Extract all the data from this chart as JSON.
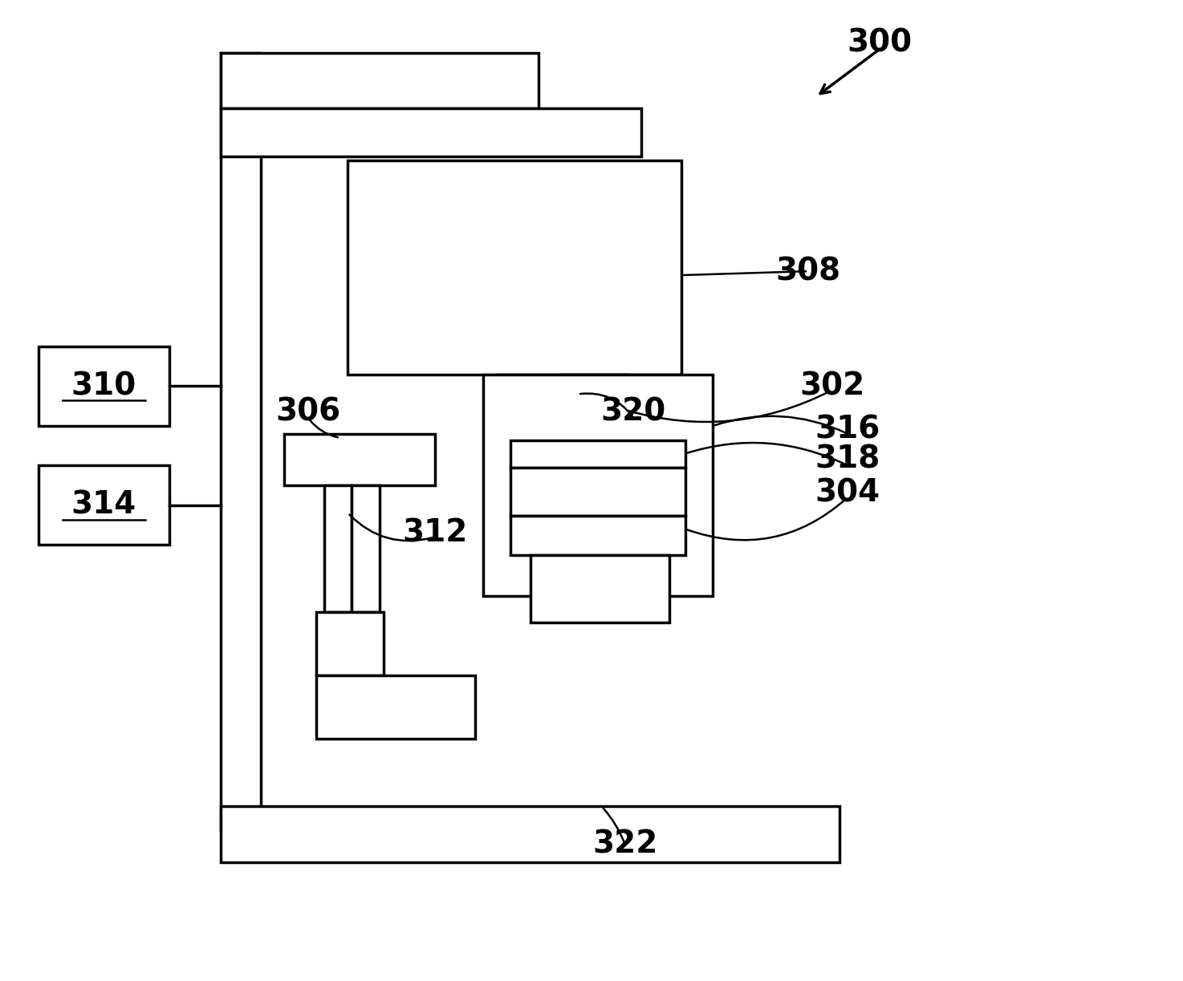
{
  "bg_color": "#ffffff",
  "lc": "#000000",
  "lw": 2.5,
  "lw_thin": 1.8,
  "fig_w": 14.74,
  "fig_h": 12.23,
  "dpi": 100
}
